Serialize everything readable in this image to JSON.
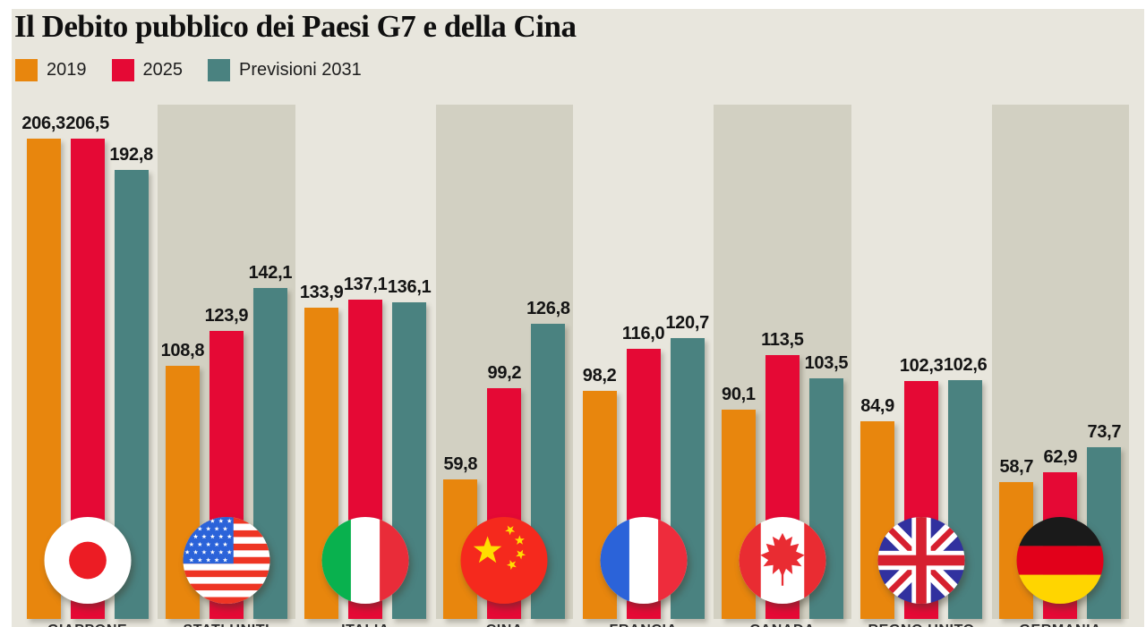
{
  "title": "Il Debito pubblico dei Paesi G7 e della Cina",
  "legend": {
    "position": "top-left",
    "items": [
      {
        "label": "2019",
        "color": "#e8860d"
      },
      {
        "label": "2025",
        "color": "#e50935"
      },
      {
        "label": "Previsioni 2031",
        "color": "#4a8280"
      }
    ]
  },
  "chart_data": {
    "type": "bar",
    "title": "Il Debito pubblico dei Paesi G7 e della Cina",
    "categories": [
      "GIAPPONE",
      "STATI UNITI",
      "ITALIA",
      "CINA",
      "FRANCIA",
      "CANADA",
      "REGNO UNITO",
      "GERMANIA"
    ],
    "flags": [
      "japan-flag",
      "usa-flag",
      "italy-flag",
      "china-flag",
      "france-flag",
      "canada-flag",
      "uk-flag",
      "germany-flag"
    ],
    "shaded_columns": [
      false,
      true,
      false,
      true,
      false,
      true,
      false,
      true
    ],
    "series": [
      {
        "name": "2019",
        "color": "#e8860d",
        "values": [
          206.3,
          108.8,
          133.9,
          59.8,
          98.2,
          90.1,
          84.9,
          58.7
        ],
        "display": [
          "206,3",
          "108,8",
          "133,9",
          "59,8",
          "98,2",
          "90,1",
          "84,9",
          "58,7"
        ]
      },
      {
        "name": "2025",
        "color": "#e50935",
        "values": [
          206.5,
          123.9,
          137.1,
          99.2,
          116.0,
          113.5,
          102.3,
          62.9
        ],
        "display": [
          "206,5",
          "123,9",
          "137,1",
          "99,2",
          "116,0",
          "113,5",
          "102,3",
          "62,9"
        ]
      },
      {
        "name": "Previsioni 2031",
        "color": "#4a8280",
        "values": [
          192.8,
          142.1,
          136.1,
          126.8,
          120.7,
          103.5,
          102.6,
          73.7
        ],
        "display": [
          "192,8",
          "142,1",
          "136,1",
          "126,8",
          "120,7",
          "103,5",
          "102,6",
          "73,7"
        ]
      }
    ],
    "ylim": [
      0,
      221
    ],
    "grid": false,
    "value_labels_shown": true,
    "xlabel": "",
    "ylabel": ""
  },
  "colors": {
    "background": "#e8e6dd",
    "shaded_panel": "#d2d0c2",
    "page_margin": "#ffffff",
    "title_text": "#0f0f0f",
    "value_text": "#141414",
    "country_text": "#2e2e2e"
  }
}
